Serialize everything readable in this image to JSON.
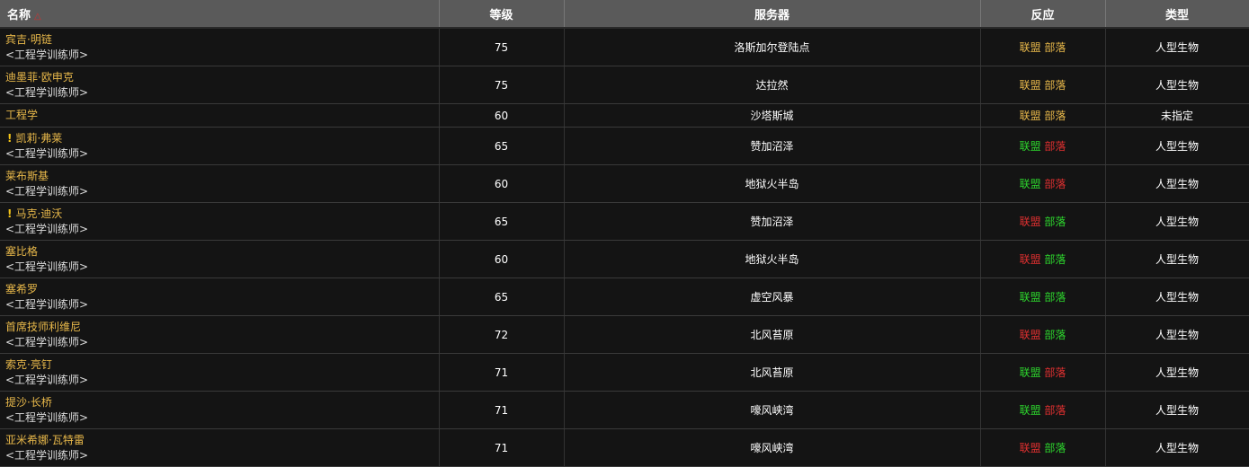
{
  "headers": {
    "name": "名称",
    "level": "等级",
    "server": "服务器",
    "reaction": "反应",
    "type": "类型"
  },
  "sort_icon": "triangle-up-icon",
  "reaction_labels": [
    "联盟",
    "部落"
  ],
  "colors": {
    "yellow": "#e8b84a",
    "green": "#2dd62d",
    "red": "#e03030"
  },
  "rows": [
    {
      "name": "宾吉·明链",
      "sub": "<工程学训练师>",
      "quest": false,
      "level": "75",
      "server": "洛斯加尔登陆点",
      "alliance": "y",
      "horde": "y",
      "type": "人型生物"
    },
    {
      "name": "迪墨菲·欧申克",
      "sub": "<工程学训练师>",
      "quest": false,
      "level": "75",
      "server": "达拉然",
      "alliance": "y",
      "horde": "y",
      "type": "人型生物"
    },
    {
      "name": "工程学",
      "sub": "",
      "quest": false,
      "level": "60",
      "server": "沙塔斯城",
      "alliance": "y",
      "horde": "y",
      "type": "未指定"
    },
    {
      "name": "凯莉·弗莱",
      "sub": "<工程学训练师>",
      "quest": true,
      "level": "65",
      "server": "赞加沼泽",
      "alliance": "g",
      "horde": "r",
      "type": "人型生物"
    },
    {
      "name": "莱布斯基",
      "sub": "<工程学训练师>",
      "quest": false,
      "level": "60",
      "server": "地狱火半岛",
      "alliance": "g",
      "horde": "r",
      "type": "人型生物"
    },
    {
      "name": "马克·迪沃",
      "sub": "<工程学训练师>",
      "quest": true,
      "level": "65",
      "server": "赞加沼泽",
      "alliance": "r",
      "horde": "g",
      "type": "人型生物"
    },
    {
      "name": "塞比格",
      "sub": "<工程学训练师>",
      "quest": false,
      "level": "60",
      "server": "地狱火半岛",
      "alliance": "r",
      "horde": "g",
      "type": "人型生物"
    },
    {
      "name": "塞希罗",
      "sub": "<工程学训练师>",
      "quest": false,
      "level": "65",
      "server": "虚空风暴",
      "alliance": "g",
      "horde": "g",
      "type": "人型生物"
    },
    {
      "name": "首席技师利维尼",
      "sub": "<工程学训练师>",
      "quest": false,
      "level": "72",
      "server": "北风苔原",
      "alliance": "r",
      "horde": "g",
      "type": "人型生物"
    },
    {
      "name": "索克·亮钉",
      "sub": "<工程学训练师>",
      "quest": false,
      "level": "71",
      "server": "北风苔原",
      "alliance": "g",
      "horde": "r",
      "type": "人型生物"
    },
    {
      "name": "提沙·长桥",
      "sub": "<工程学训练师>",
      "quest": false,
      "level": "71",
      "server": "嚎风峡湾",
      "alliance": "g",
      "horde": "r",
      "type": "人型生物"
    },
    {
      "name": "亚米希娜·瓦特雷",
      "sub": "<工程学训练师>",
      "quest": false,
      "level": "71",
      "server": "嚎风峡湾",
      "alliance": "r",
      "horde": "g",
      "type": "人型生物"
    }
  ]
}
